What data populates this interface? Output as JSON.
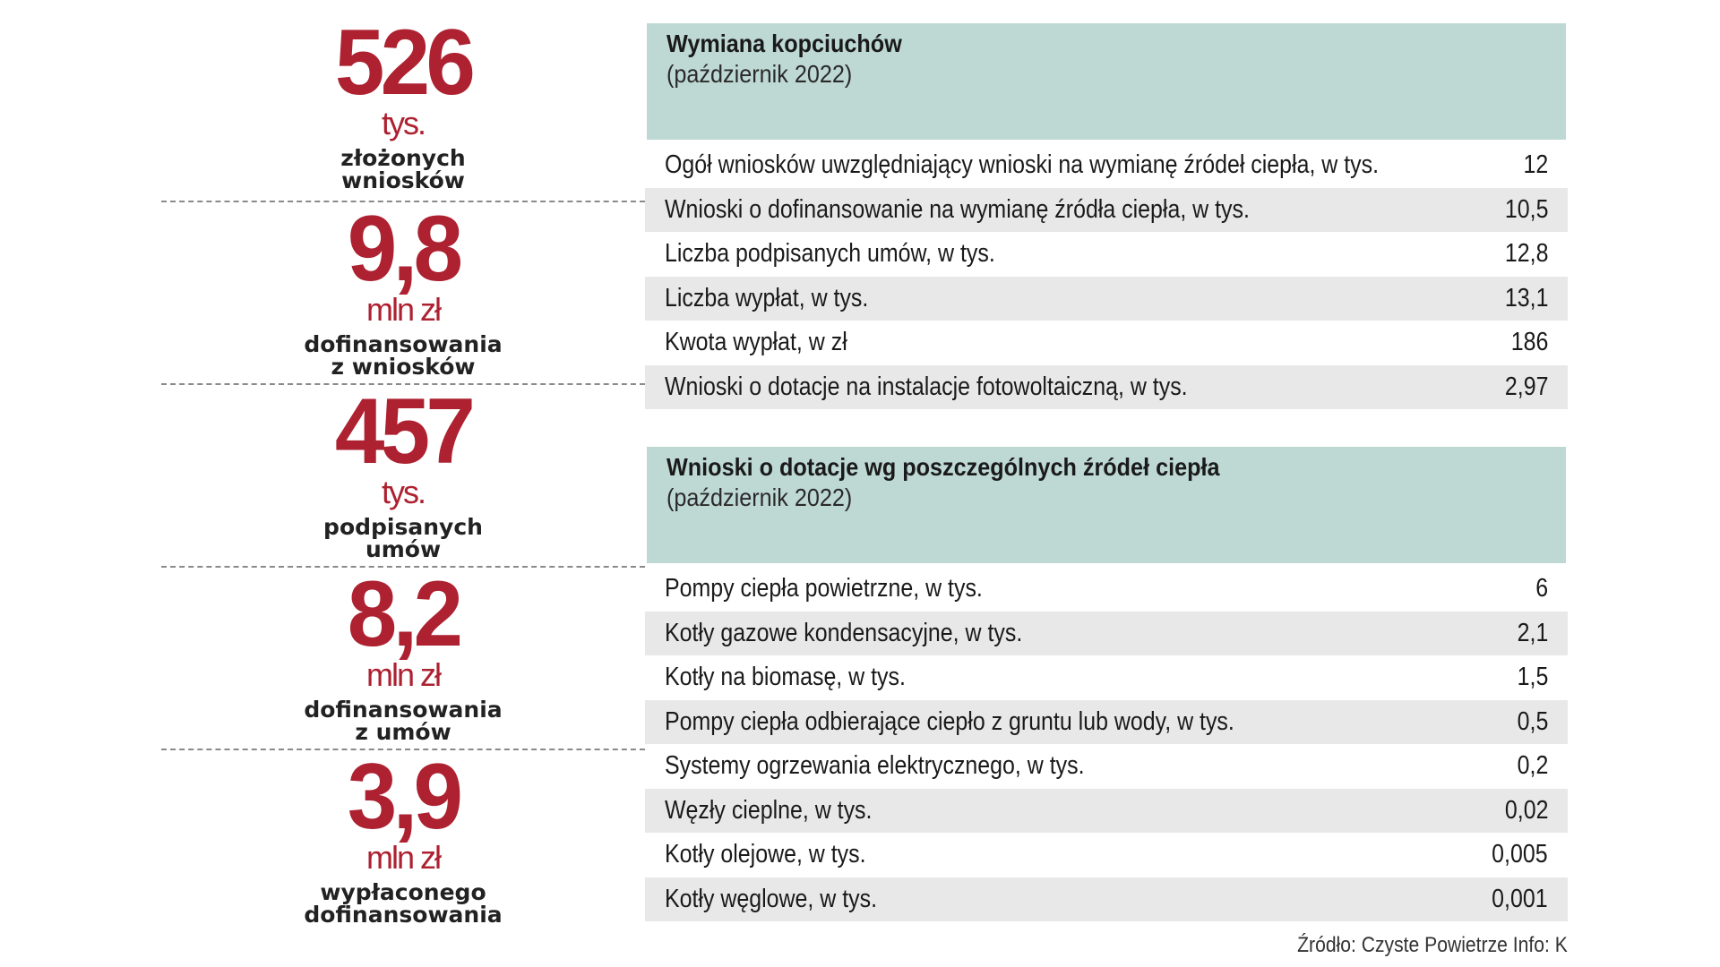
{
  "stats": [
    {
      "value": "526",
      "unit": "tys.",
      "desc_line1": "złożonych",
      "desc_line2": "wniosków"
    },
    {
      "value": "9,8",
      "unit": "mln zł",
      "desc_line1": "dofinansowania",
      "desc_line2": "z wniosków"
    },
    {
      "value": "457",
      "unit": "tys.",
      "desc_line1": "podpisanych",
      "desc_line2": "umów"
    },
    {
      "value": "8,2",
      "unit": "mln zł",
      "desc_line1": "dofinansowania",
      "desc_line2": "z umów"
    },
    {
      "value": "3,9",
      "unit": "mln zł",
      "desc_line1": "wypłaconego",
      "desc_line2": "dofinansowania"
    }
  ],
  "table1": {
    "title": "Wymiana kopciuchów",
    "subtitle": "(październik 2022)",
    "rows": [
      {
        "label": "Ogół wniosków uwzględniający wnioski na wymianę źródeł ciepła, w tys.",
        "value": "12"
      },
      {
        "label": "Wnioski o dofinansowanie na wymianę źródła ciepła, w tys.",
        "value": "10,5"
      },
      {
        "label": "Liczba podpisanych umów, w tys.",
        "value": "12,8"
      },
      {
        "label": "Liczba wypłat, w tys.",
        "value": "13,1"
      },
      {
        "label": "Kwota wypłat, w zł",
        "value": "186"
      },
      {
        "label": "Wnioski o dotacje na instalacje fotowoltaiczną, w tys.",
        "value": "2,97"
      }
    ]
  },
  "table2": {
    "title": "Wnioski o dotacje wg poszczególnych źródeł ciepła",
    "subtitle": "(październik 2022)",
    "rows": [
      {
        "label": "Pompy ciepła powietrzne, w tys.",
        "value": "6"
      },
      {
        "label": "Kotły gazowe kondensacyjne, w tys.",
        "value": "2,1"
      },
      {
        "label": "Kotły na biomasę, w tys.",
        "value": "1,5"
      },
      {
        "label": "Pompy ciepła odbierające ciepło z gruntu lub wody, w tys.",
        "value": "0,5"
      },
      {
        "label": "Systemy ogrzewania elektrycznego, w tys.",
        "value": "0,2"
      },
      {
        "label": "Węzły cieplne, w tys.",
        "value": "0,02"
      },
      {
        "label": "Kotły olejowe, w tys.",
        "value": "0,005"
      },
      {
        "label": "Kotły węglowe, w tys.",
        "value": "0,001"
      }
    ]
  },
  "footer": "Źródło: Czyste Powietrze  Info: K",
  "colors": {
    "accent": "#ad2130",
    "header_bg": "#bed9d4",
    "stripe": "#e8e8e8"
  }
}
